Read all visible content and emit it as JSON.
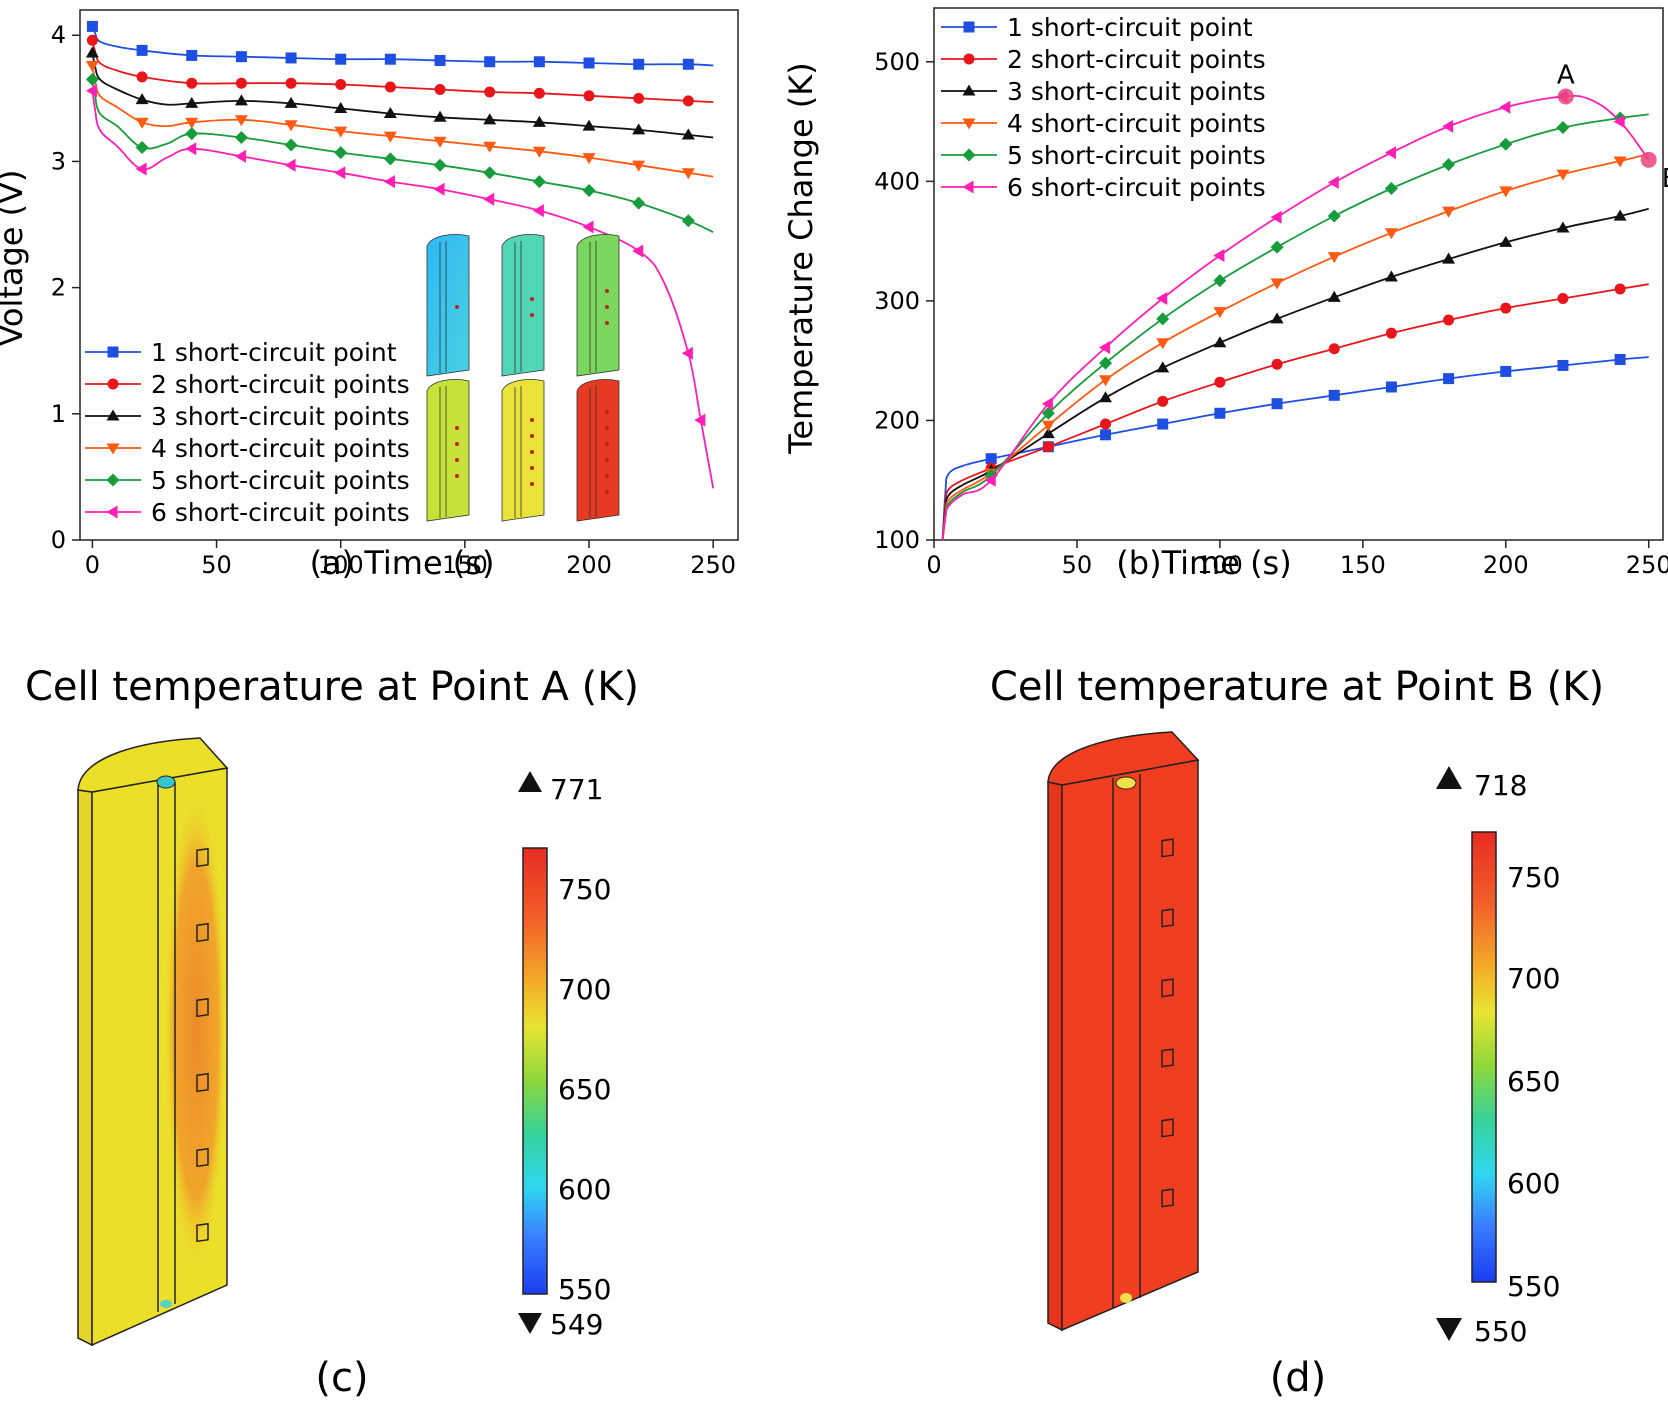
{
  "legend_series_colors": [
    "#1f4fe0",
    "#e8161b",
    "#111111",
    "#ff5a12",
    "#169c3a",
    "#ff1fb4"
  ],
  "chart_data": [
    {
      "id": "a",
      "type": "line",
      "xlabel": "(a) Time (s)",
      "ylabel": "Voltage (V)",
      "xlim": [
        -5,
        260
      ],
      "ylim": [
        0,
        4.2
      ],
      "xticks": [
        "0",
        "50",
        "100",
        "150",
        "200",
        "250"
      ],
      "yticks": [
        "0",
        "1",
        "2",
        "3",
        "4"
      ],
      "legend_position": "bottom-left",
      "series": [
        {
          "name": "1 short-circuit point",
          "marker": "square",
          "color": "#1f4fe0",
          "x": [
            0,
            1,
            3,
            10,
            20,
            40,
            60,
            80,
            100,
            120,
            140,
            160,
            180,
            200,
            220,
            240,
            250
          ],
          "y": [
            4.07,
            4.02,
            3.95,
            3.91,
            3.88,
            3.84,
            3.83,
            3.82,
            3.81,
            3.81,
            3.8,
            3.79,
            3.79,
            3.78,
            3.77,
            3.77,
            3.76
          ]
        },
        {
          "name": "2 short-circuit points",
          "marker": "circle",
          "color": "#e8161b",
          "x": [
            0,
            1,
            3,
            10,
            20,
            40,
            60,
            80,
            100,
            120,
            140,
            160,
            180,
            200,
            220,
            240,
            250
          ],
          "y": [
            3.96,
            3.88,
            3.78,
            3.72,
            3.67,
            3.62,
            3.62,
            3.62,
            3.61,
            3.59,
            3.57,
            3.55,
            3.54,
            3.52,
            3.5,
            3.48,
            3.47
          ]
        },
        {
          "name": "3 short-circuit points",
          "marker": "triangle-up",
          "color": "#111111",
          "x": [
            0,
            1,
            3,
            10,
            20,
            30,
            40,
            60,
            80,
            100,
            120,
            140,
            160,
            180,
            200,
            220,
            240,
            250
          ],
          "y": [
            3.86,
            3.76,
            3.65,
            3.57,
            3.49,
            3.45,
            3.46,
            3.48,
            3.46,
            3.42,
            3.38,
            3.35,
            3.33,
            3.31,
            3.28,
            3.25,
            3.21,
            3.19
          ]
        },
        {
          "name": "4 short-circuit points",
          "marker": "triangle-down",
          "color": "#ff5a12",
          "x": [
            0,
            1,
            3,
            10,
            20,
            30,
            40,
            60,
            80,
            100,
            120,
            140,
            160,
            180,
            200,
            220,
            240,
            250
          ],
          "y": [
            3.76,
            3.65,
            3.52,
            3.43,
            3.31,
            3.28,
            3.31,
            3.33,
            3.29,
            3.24,
            3.2,
            3.16,
            3.12,
            3.08,
            3.03,
            2.97,
            2.91,
            2.88
          ]
        },
        {
          "name": "5 short-circuit points",
          "marker": "diamond",
          "color": "#169c3a",
          "x": [
            0,
            1,
            3,
            10,
            20,
            30,
            40,
            60,
            80,
            100,
            120,
            140,
            160,
            180,
            200,
            220,
            240,
            250
          ],
          "y": [
            3.65,
            3.53,
            3.38,
            3.28,
            3.11,
            3.14,
            3.22,
            3.19,
            3.13,
            3.07,
            3.02,
            2.97,
            2.91,
            2.84,
            2.77,
            2.67,
            2.53,
            2.44
          ]
        },
        {
          "name": "6 short-circuit points",
          "marker": "triangle-left",
          "color": "#ff1fb4",
          "x": [
            0,
            1,
            3,
            10,
            20,
            30,
            40,
            60,
            80,
            100,
            120,
            140,
            160,
            180,
            200,
            220,
            230,
            240,
            245,
            250
          ],
          "y": [
            3.56,
            3.42,
            3.25,
            3.12,
            2.94,
            3.03,
            3.1,
            3.04,
            2.97,
            2.91,
            2.84,
            2.78,
            2.7,
            2.61,
            2.48,
            2.29,
            2.05,
            1.48,
            0.95,
            0.41
          ]
        }
      ]
    },
    {
      "id": "b",
      "type": "line",
      "xlabel": "(b)Time (s)",
      "ylabel": "Temperature Change (K)",
      "xlim": [
        0,
        255
      ],
      "ylim": [
        100,
        545
      ],
      "xticks": [
        "0",
        "50",
        "100",
        "150",
        "200",
        "250"
      ],
      "yticks": [
        "100",
        "200",
        "300",
        "400",
        "500"
      ],
      "legend_position": "top-left",
      "annotations": [
        {
          "text": "A",
          "x": 221,
          "y": 471
        },
        {
          "text": "B",
          "x": 250,
          "y": 418
        }
      ],
      "series": [
        {
          "name": "1 short-circuit point",
          "marker": "square",
          "color": "#1f4fe0",
          "x": [
            3,
            4,
            5,
            10,
            20,
            40,
            60,
            80,
            100,
            120,
            140,
            160,
            180,
            200,
            220,
            240,
            250
          ],
          "y": [
            100,
            140,
            155,
            162,
            168,
            178,
            188,
            197,
            206,
            214,
            221,
            228,
            235,
            241,
            246,
            251,
            253
          ]
        },
        {
          "name": "2 short-circuit points",
          "marker": "circle",
          "color": "#e8161b",
          "x": [
            3,
            4,
            5,
            10,
            20,
            40,
            60,
            80,
            100,
            120,
            140,
            160,
            180,
            200,
            220,
            240,
            250
          ],
          "y": [
            100,
            130,
            142,
            150,
            160,
            178,
            197,
            216,
            232,
            247,
            260,
            273,
            284,
            294,
            302,
            310,
            314
          ]
        },
        {
          "name": "3 short-circuit points",
          "marker": "triangle-up",
          "color": "#111111",
          "x": [
            3,
            4,
            5,
            10,
            20,
            40,
            60,
            80,
            100,
            120,
            140,
            160,
            180,
            200,
            220,
            240,
            250
          ],
          "y": [
            100,
            125,
            137,
            146,
            158,
            189,
            219,
            244,
            265,
            285,
            303,
            320,
            335,
            349,
            361,
            371,
            377
          ]
        },
        {
          "name": "4 short-circuit points",
          "marker": "triangle-down",
          "color": "#ff5a12",
          "x": [
            3,
            4,
            5,
            10,
            20,
            40,
            60,
            80,
            100,
            120,
            140,
            160,
            180,
            200,
            220,
            240,
            250
          ],
          "y": [
            100,
            122,
            133,
            142,
            156,
            196,
            234,
            265,
            291,
            315,
            337,
            357,
            375,
            392,
            406,
            417,
            423
          ]
        },
        {
          "name": "5 short-circuit points",
          "marker": "diamond",
          "color": "#169c3a",
          "x": [
            3,
            4,
            5,
            10,
            20,
            40,
            60,
            80,
            100,
            120,
            140,
            160,
            180,
            200,
            220,
            240,
            250
          ],
          "y": [
            100,
            120,
            130,
            140,
            154,
            206,
            248,
            285,
            317,
            345,
            371,
            394,
            414,
            431,
            445,
            453,
            456
          ]
        },
        {
          "name": "6 short-circuit points",
          "marker": "triangle-left",
          "color": "#ff1fb4",
          "x": [
            3,
            4,
            5,
            10,
            20,
            40,
            60,
            80,
            100,
            120,
            140,
            160,
            180,
            200,
            220,
            230,
            240,
            250
          ],
          "y": [
            100,
            118,
            128,
            138,
            150,
            214,
            261,
            302,
            338,
            370,
            399,
            424,
            446,
            462,
            471,
            468,
            450,
            418
          ]
        }
      ]
    },
    {
      "id": "c",
      "type": "heatmap",
      "title": "Cell temperature at Point A (K)",
      "caption": "(c)",
      "colorbar": {
        "ticks": [
          "750",
          "700",
          "650",
          "600",
          "550"
        ],
        "max_marker": "771",
        "min_marker": "549",
        "range": [
          550,
          771
        ]
      },
      "body_color": "#ecdf2a",
      "hotspot_color": "#ef9a28"
    },
    {
      "id": "d",
      "type": "heatmap",
      "title": "Cell temperature at Point B (K)",
      "caption": "(d)",
      "colorbar": {
        "ticks": [
          "750",
          "700",
          "650",
          "600",
          "550"
        ],
        "max_marker": "718",
        "min_marker": "550",
        "range": [
          550,
          770
        ]
      },
      "body_color": "#f23e20",
      "hotspot_color": "#f23e20"
    }
  ]
}
